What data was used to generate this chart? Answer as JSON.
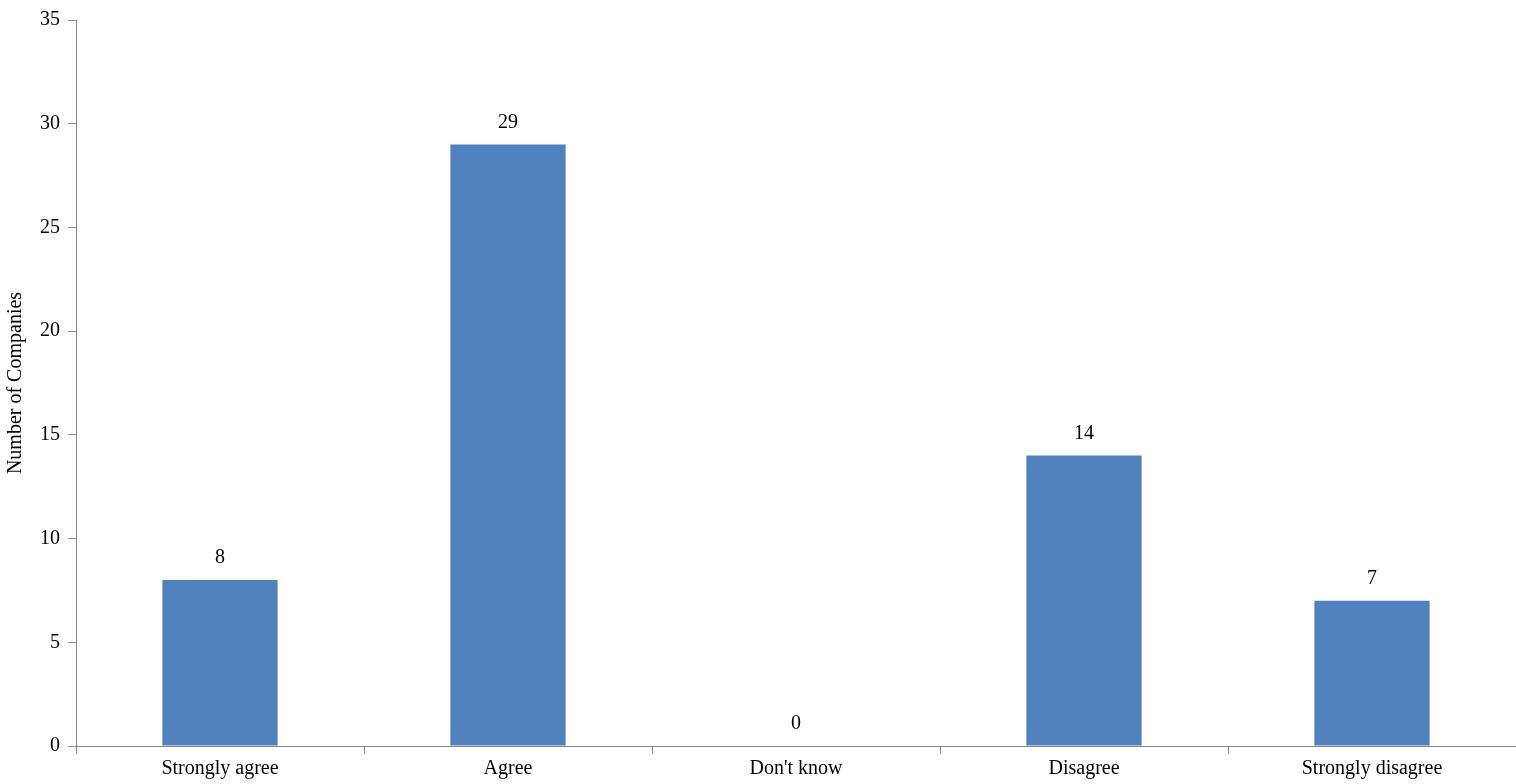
{
  "chart_data": {
    "type": "bar",
    "ylabel": "Number of Companies",
    "categories": [
      "Strongly agree",
      "Agree",
      "Don't know",
      "Disagree",
      "Strongly disagree"
    ],
    "values": [
      8,
      29,
      0,
      14,
      7
    ],
    "color": "#4f81bd",
    "ylim": [
      0,
      35
    ],
    "yticks": [
      0,
      5,
      10,
      15,
      20,
      25,
      30,
      35
    ],
    "grid": false,
    "legend": false,
    "data_labels": true
  }
}
